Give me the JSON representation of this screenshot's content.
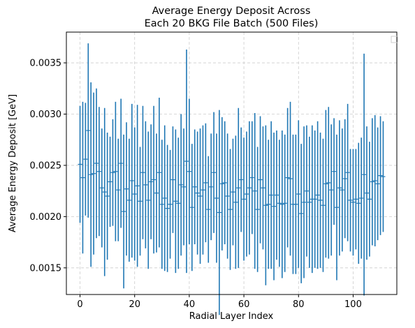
{
  "chart_data": {
    "type": "errorbar",
    "title": "Average Energy Deposit Across\nEach 20 BKG File Batch (500 Files)",
    "xlabel": "Radial Layer Index",
    "ylabel": "Average Energy Deposit [GeV]",
    "xlim": [
      -5,
      116
    ],
    "ylim": [
      0.00124,
      0.0038
    ],
    "xticks": [
      0,
      20,
      40,
      60,
      80,
      100
    ],
    "yticks": [
      0.0015,
      0.002,
      0.0025,
      0.003,
      0.0035
    ],
    "ytick_labels": [
      "0.0015",
      "0.0020",
      "0.0025",
      "0.0030",
      "0.0035"
    ],
    "grid": true,
    "grid_style": "dashed",
    "legend": "top-right (empty)",
    "series_color": "#1f77b4",
    "x": [
      0,
      1,
      2,
      3,
      4,
      5,
      6,
      7,
      8,
      9,
      10,
      11,
      12,
      13,
      14,
      15,
      16,
      17,
      18,
      19,
      20,
      21,
      22,
      23,
      24,
      25,
      26,
      27,
      28,
      29,
      30,
      31,
      32,
      33,
      34,
      35,
      36,
      37,
      38,
      39,
      40,
      41,
      42,
      43,
      44,
      45,
      46,
      47,
      48,
      49,
      50,
      51,
      52,
      53,
      54,
      55,
      56,
      57,
      58,
      59,
      60,
      61,
      62,
      63,
      64,
      65,
      66,
      67,
      68,
      69,
      70,
      71,
      72,
      73,
      74,
      75,
      76,
      77,
      78,
      79,
      80,
      81,
      82,
      83,
      84,
      85,
      86,
      87,
      88,
      89,
      90,
      91,
      92,
      93,
      94,
      95,
      96,
      97,
      98,
      99,
      100,
      101,
      102,
      103,
      104,
      105,
      106,
      107,
      108,
      109,
      110,
      111
    ],
    "y": [
      0.00251,
      0.00238,
      0.00256,
      0.00284,
      0.00241,
      0.00242,
      0.00252,
      0.00244,
      0.00228,
      0.00224,
      0.0022,
      0.00234,
      0.00243,
      0.00244,
      0.00226,
      0.00252,
      0.00205,
      0.00227,
      0.00216,
      0.00235,
      0.00222,
      0.0023,
      0.00215,
      0.00243,
      0.00231,
      0.00216,
      0.00234,
      0.00236,
      0.00223,
      0.00243,
      0.00212,
      0.00218,
      0.00208,
      0.00212,
      0.00236,
      0.00215,
      0.00213,
      0.00231,
      0.00229,
      0.00254,
      0.00244,
      0.00209,
      0.00229,
      0.00223,
      0.0022,
      0.00226,
      0.00233,
      0.00207,
      0.00229,
      0.00243,
      0.00218,
      0.00204,
      0.00232,
      0.00233,
      0.0022,
      0.00207,
      0.00224,
      0.00214,
      0.00228,
      0.00236,
      0.00217,
      0.00222,
      0.00228,
      0.00238,
      0.00225,
      0.00207,
      0.00236,
      0.00228,
      0.00211,
      0.00212,
      0.00221,
      0.0021,
      0.00221,
      0.00213,
      0.00212,
      0.00213,
      0.00238,
      0.00237,
      0.00212,
      0.00212,
      0.00222,
      0.00203,
      0.00214,
      0.00225,
      0.00214,
      0.00217,
      0.00217,
      0.00221,
      0.00216,
      0.00211,
      0.00232,
      0.00233,
      0.00226,
      0.00244,
      0.00209,
      0.00228,
      0.00226,
      0.00237,
      0.00243,
      0.00216,
      0.00214,
      0.00217,
      0.00213,
      0.00218,
      0.00241,
      0.00223,
      0.00217,
      0.00234,
      0.00235,
      0.00232,
      0.0024,
      0.00239
    ],
    "yerr": [
      0.00057,
      0.00074,
      0.00055,
      0.00085,
      0.0009,
      0.00079,
      0.00073,
      0.00063,
      0.00058,
      0.00082,
      0.00062,
      0.00044,
      0.00052,
      0.00068,
      0.0005,
      0.00063,
      0.00075,
      0.00065,
      0.0006,
      0.00075,
      0.00065,
      0.00079,
      0.00053,
      0.00065,
      0.00062,
      0.00067,
      0.00056,
      0.00072,
      0.00058,
      0.00073,
      0.00063,
      0.00071,
      0.00062,
      0.00053,
      0.00052,
      0.0007,
      0.00064,
      0.00069,
      0.00057,
      0.00109,
      0.00071,
      0.00062,
      0.00056,
      0.0006,
      0.00066,
      0.00063,
      0.00058,
      0.00052,
      0.00052,
      0.00059,
      0.00063,
      0.001,
      0.00065,
      0.0006,
      0.00061,
      0.00059,
      0.00052,
      0.00065,
      0.00078,
      0.00051,
      0.0006,
      0.00061,
      0.00065,
      0.00055,
      0.00076,
      0.00061,
      0.00062,
      0.0006,
      0.00078,
      0.00063,
      0.00072,
      0.00072,
      0.00063,
      0.00062,
      0.00072,
      0.00067,
      0.00068,
      0.00075,
      0.00068,
      0.00068,
      0.00072,
      0.00068,
      0.00074,
      0.00064,
      0.00064,
      0.00072,
      0.00067,
      0.00072,
      0.00066,
      0.00065,
      0.00072,
      0.00074,
      0.00064,
      0.00052,
      0.00071,
      0.00066,
      0.0006,
      0.00058,
      0.00067,
      0.0005,
      0.00052,
      0.00049,
      0.00059,
      0.00059,
      0.00118,
      0.00065,
      0.00056,
      0.00062,
      0.00064,
      0.00055,
      0.00058,
      0.00054
    ]
  }
}
